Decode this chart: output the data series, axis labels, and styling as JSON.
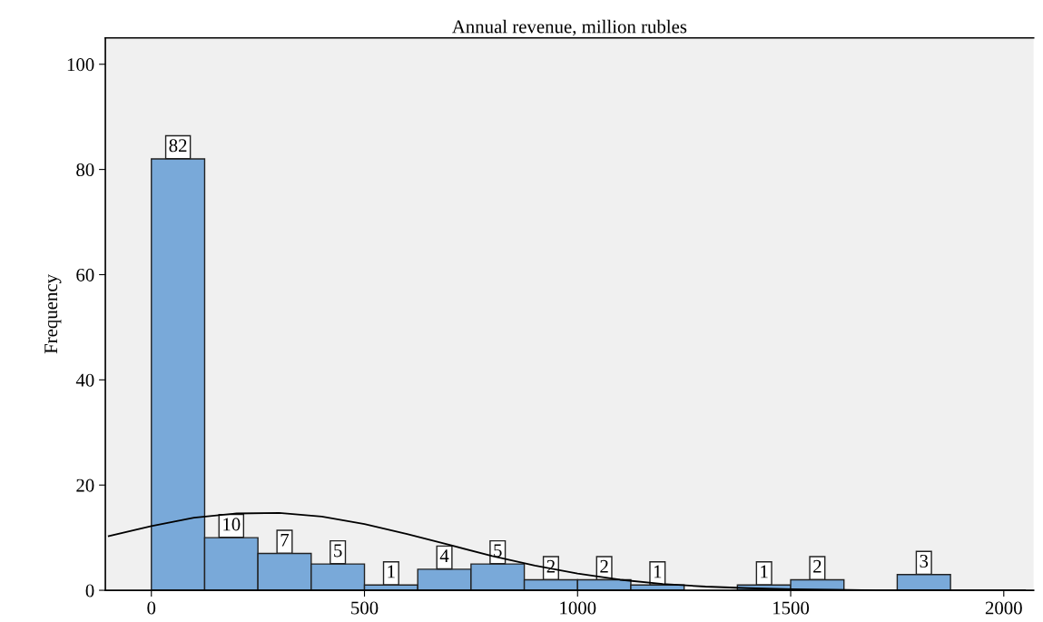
{
  "chart_data": {
    "type": "histogram",
    "title": "Annual revenue, million rubles",
    "ylabel": "Frequency",
    "bins": [
      0,
      125,
      250,
      375,
      500,
      625,
      750,
      875,
      1000,
      1125,
      1250,
      1375,
      1500,
      1625,
      1750,
      1875
    ],
    "values": [
      82,
      10,
      7,
      5,
      1,
      4,
      5,
      2,
      2,
      1,
      0,
      1,
      2,
      0,
      3
    ],
    "value_labels": [
      "82",
      "10",
      "7",
      "5",
      "1",
      "4",
      "5",
      "2",
      "2",
      "1",
      null,
      "1",
      "2",
      null,
      "3"
    ],
    "color": "#79a9d9",
    "series": [
      {
        "type": "line",
        "color": "#000000",
        "x": [
          -100,
          0,
          100,
          200,
          300,
          400,
          500,
          600,
          700,
          800,
          900,
          1000,
          1100,
          1200,
          1300,
          1400,
          1500,
          1600,
          1700,
          1800,
          1900,
          2000,
          2050
        ],
        "values": [
          10.3,
          12.2,
          13.8,
          14.6,
          14.7,
          14.0,
          12.6,
          10.7,
          8.6,
          6.5,
          4.7,
          3.2,
          2.0,
          1.2,
          0.7,
          0.4,
          0.2,
          0.1,
          0,
          0,
          0,
          0,
          0
        ]
      }
    ],
    "xlim": [
      -108,
      2070
    ],
    "ylim": [
      0,
      105
    ],
    "xticks": [
      0,
      500,
      1000,
      1500,
      2000
    ],
    "yticks": [
      0,
      20,
      40,
      60,
      80,
      100
    ],
    "grid": false,
    "legend": false
  }
}
